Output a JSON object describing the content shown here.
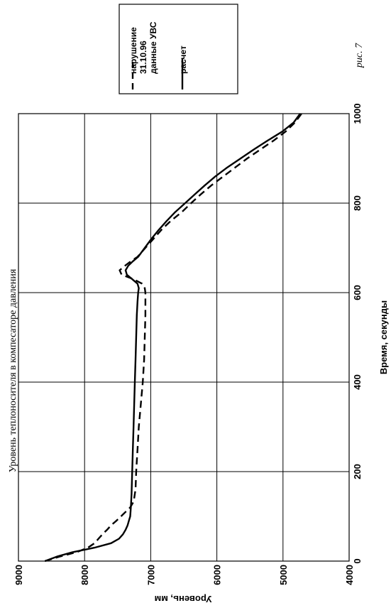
{
  "figure_label": "рис. 7",
  "chart_data": {
    "type": "line",
    "title": "Уровень теплоносителя в компесаторе давления",
    "xlabel": "Время, секунды",
    "ylabel": "Уровень, мм",
    "xlim": [
      0,
      1000
    ],
    "ylim": [
      4000,
      9000
    ],
    "x_ticks": [
      "0",
      "200",
      "400",
      "600",
      "800",
      "1000"
    ],
    "y_ticks": [
      "9000",
      "8000",
      "7000",
      "6000",
      "5000",
      "4000"
    ],
    "grid": true,
    "legend_position": "top-right",
    "series": [
      {
        "name": "нарушение 31.10.96 данные УВС",
        "style": "dashed",
        "x": [
          0,
          10,
          20,
          30,
          40,
          50,
          60,
          70,
          80,
          90,
          100,
          110,
          120,
          130,
          140,
          150,
          160,
          200,
          250,
          300,
          350,
          400,
          450,
          500,
          550,
          580,
          600,
          610,
          620,
          630,
          640,
          650,
          660,
          670,
          680,
          700,
          720,
          740,
          760,
          780,
          800,
          820,
          840,
          860,
          880,
          900,
          920,
          940,
          960,
          980,
          1000
        ],
        "y": [
          8600,
          8380,
          8120,
          7950,
          7850,
          7790,
          7730,
          7660,
          7600,
          7520,
          7450,
          7380,
          7310,
          7270,
          7250,
          7240,
          7230,
          7220,
          7200,
          7180,
          7150,
          7120,
          7100,
          7090,
          7080,
          7080,
          7080,
          7090,
          7130,
          7260,
          7440,
          7470,
          7390,
          7300,
          7200,
          7080,
          6960,
          6840,
          6700,
          6530,
          6390,
          6240,
          6080,
          5900,
          5720,
          5540,
          5340,
          5140,
          4960,
          4820,
          4720
        ]
      },
      {
        "name": "расчет",
        "style": "solid",
        "x": [
          0,
          10,
          20,
          30,
          40,
          50,
          60,
          70,
          80,
          90,
          100,
          120,
          150,
          200,
          250,
          300,
          350,
          400,
          450,
          500,
          550,
          580,
          600,
          610,
          620,
          630,
          640,
          650,
          660,
          670,
          680,
          700,
          720,
          740,
          760,
          780,
          800,
          820,
          840,
          860,
          880,
          900,
          920,
          940,
          960,
          980,
          1000
        ],
        "y": [
          8600,
          8420,
          8180,
          7850,
          7600,
          7480,
          7420,
          7380,
          7350,
          7330,
          7310,
          7300,
          7290,
          7280,
          7270,
          7260,
          7250,
          7240,
          7230,
          7220,
          7210,
          7200,
          7190,
          7180,
          7200,
          7280,
          7360,
          7380,
          7340,
          7270,
          7190,
          7090,
          6990,
          6880,
          6760,
          6630,
          6480,
          6330,
          6180,
          6020,
          5840,
          5640,
          5440,
          5230,
          5010,
          4840,
          4740
        ]
      }
    ]
  }
}
